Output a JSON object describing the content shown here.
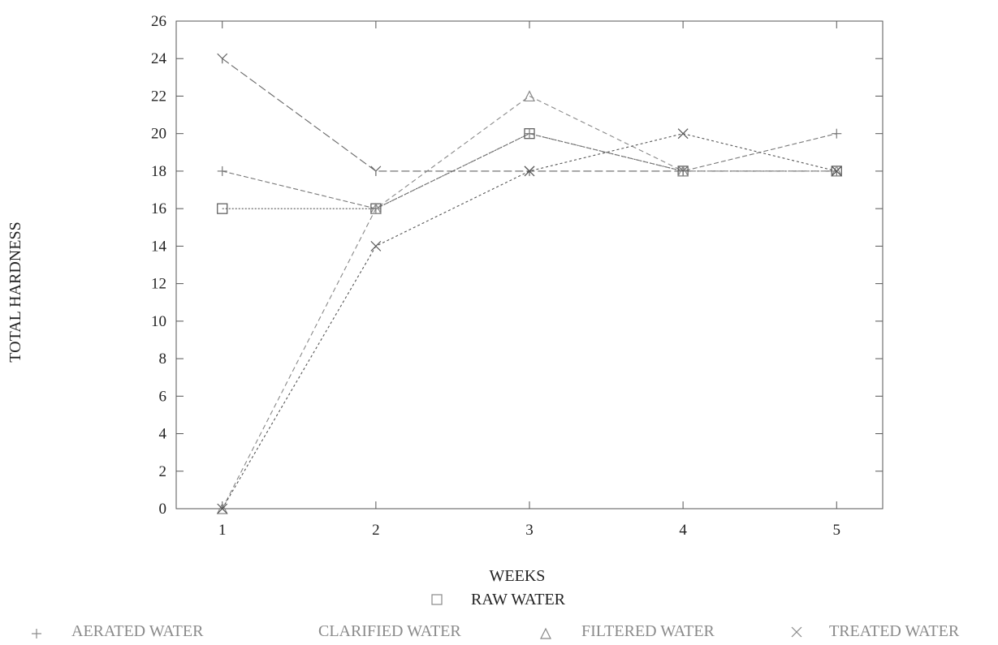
{
  "chart_data": {
    "type": "line",
    "xlabel": "WEEKS",
    "ylabel": "TOTAL HARDNESS",
    "x": [
      1,
      2,
      3,
      4,
      5
    ],
    "xlim": [
      0.7,
      5.3
    ],
    "ylim": [
      0,
      26
    ],
    "yticks": [
      0,
      2,
      4,
      6,
      8,
      10,
      12,
      14,
      16,
      18,
      20,
      22,
      24,
      26
    ],
    "xticks": [
      1,
      2,
      3,
      4,
      5
    ],
    "grid": false,
    "legend_position": "bottom",
    "series": [
      {
        "name": "RAW WATER",
        "marker": "square",
        "color": "#555555",
        "dash": "2,2",
        "values": [
          16,
          16,
          20,
          18,
          18
        ]
      },
      {
        "name": "AERATED WATER",
        "marker": "plus",
        "color": "#777777",
        "dash": "6,3",
        "values": [
          18,
          16,
          20,
          18,
          20
        ]
      },
      {
        "name": "CLARIFIED WATER",
        "marker": "y",
        "color": "#666666",
        "dash": "10,4",
        "values": [
          24,
          18,
          18,
          18,
          18
        ]
      },
      {
        "name": "FILTERED WATER",
        "marker": "triangle",
        "color": "#888888",
        "dash": "6,4",
        "values": [
          0,
          16,
          22,
          18,
          18
        ]
      },
      {
        "name": "TREATED WATER",
        "marker": "cross",
        "color": "#555555",
        "dash": "3,3",
        "values": [
          0,
          14,
          18,
          20,
          18
        ]
      }
    ]
  }
}
